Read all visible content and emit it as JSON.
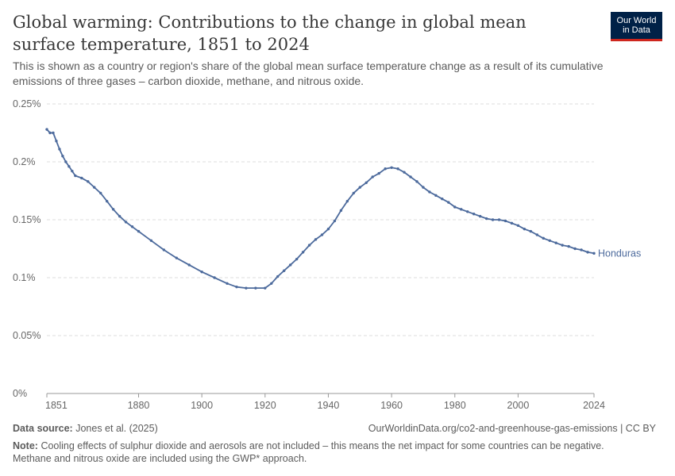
{
  "header": {
    "title": "Global warming: Contributions to the change in global mean surface temperature, 1851 to 2024",
    "subtitle": "This is shown as a country or region's share of the global mean surface temperature change as a result of its cumulative emissions of three gases – carbon dioxide, methane, and nitrous oxide.",
    "logo_line1": "Our World",
    "logo_line2": "in Data"
  },
  "colors": {
    "series": "#4c6a9c",
    "grid": "#dddddd",
    "axis_text": "#666666",
    "logo_bg": "#002147",
    "logo_accent": "#ce261e"
  },
  "chart_data": {
    "type": "line",
    "title": "Global warming: Contributions to the change in global mean surface temperature, 1851 to 2024",
    "xlim": [
      1851,
      2024
    ],
    "ylim": [
      0,
      0.25
    ],
    "y_ticks": [
      0,
      0.05,
      0.1,
      0.15,
      0.2,
      0.25
    ],
    "y_tick_labels": [
      "0%",
      "0.05%",
      "0.1%",
      "0.15%",
      "0.2%",
      "0.25%"
    ],
    "x_ticks": [
      1851,
      1880,
      1900,
      1920,
      1940,
      1960,
      1980,
      2000,
      2024
    ],
    "x_tick_labels": [
      "1851",
      "1880",
      "1900",
      "1920",
      "1940",
      "1960",
      "1980",
      "2000",
      "2024"
    ],
    "grid": "horizontal dashed",
    "series": [
      {
        "name": "Honduras",
        "points": [
          [
            1851,
            0.228
          ],
          [
            1852,
            0.225
          ],
          [
            1853,
            0.225
          ],
          [
            1854,
            0.218
          ],
          [
            1855,
            0.211
          ],
          [
            1856,
            0.205
          ],
          [
            1857,
            0.2
          ],
          [
            1858,
            0.196
          ],
          [
            1859,
            0.192
          ],
          [
            1860,
            0.188
          ],
          [
            1862,
            0.186
          ],
          [
            1864,
            0.183
          ],
          [
            1866,
            0.178
          ],
          [
            1868,
            0.173
          ],
          [
            1870,
            0.166
          ],
          [
            1872,
            0.159
          ],
          [
            1874,
            0.153
          ],
          [
            1876,
            0.148
          ],
          [
            1878,
            0.144
          ],
          [
            1880,
            0.14
          ],
          [
            1884,
            0.132
          ],
          [
            1888,
            0.124
          ],
          [
            1892,
            0.117
          ],
          [
            1896,
            0.111
          ],
          [
            1900,
            0.105
          ],
          [
            1904,
            0.1
          ],
          [
            1908,
            0.095
          ],
          [
            1911,
            0.092
          ],
          [
            1914,
            0.091
          ],
          [
            1917,
            0.091
          ],
          [
            1920,
            0.091
          ],
          [
            1922,
            0.095
          ],
          [
            1924,
            0.101
          ],
          [
            1926,
            0.106
          ],
          [
            1928,
            0.111
          ],
          [
            1930,
            0.116
          ],
          [
            1932,
            0.122
          ],
          [
            1934,
            0.128
          ],
          [
            1936,
            0.133
          ],
          [
            1938,
            0.137
          ],
          [
            1940,
            0.142
          ],
          [
            1942,
            0.149
          ],
          [
            1944,
            0.158
          ],
          [
            1946,
            0.166
          ],
          [
            1948,
            0.173
          ],
          [
            1950,
            0.178
          ],
          [
            1952,
            0.182
          ],
          [
            1954,
            0.187
          ],
          [
            1956,
            0.19
          ],
          [
            1958,
            0.194
          ],
          [
            1960,
            0.195
          ],
          [
            1962,
            0.194
          ],
          [
            1964,
            0.191
          ],
          [
            1966,
            0.187
          ],
          [
            1968,
            0.183
          ],
          [
            1970,
            0.178
          ],
          [
            1972,
            0.174
          ],
          [
            1974,
            0.171
          ],
          [
            1976,
            0.168
          ],
          [
            1978,
            0.165
          ],
          [
            1980,
            0.161
          ],
          [
            1982,
            0.159
          ],
          [
            1984,
            0.157
          ],
          [
            1986,
            0.155
          ],
          [
            1988,
            0.153
          ],
          [
            1990,
            0.151
          ],
          [
            1992,
            0.15
          ],
          [
            1994,
            0.15
          ],
          [
            1996,
            0.149
          ],
          [
            1998,
            0.147
          ],
          [
            2000,
            0.145
          ],
          [
            2002,
            0.142
          ],
          [
            2004,
            0.14
          ],
          [
            2006,
            0.137
          ],
          [
            2008,
            0.134
          ],
          [
            2010,
            0.132
          ],
          [
            2012,
            0.13
          ],
          [
            2014,
            0.128
          ],
          [
            2016,
            0.127
          ],
          [
            2018,
            0.125
          ],
          [
            2020,
            0.124
          ],
          [
            2022,
            0.122
          ],
          [
            2024,
            0.121
          ]
        ]
      }
    ]
  },
  "footer": {
    "source_label": "Data source:",
    "source_text": "Jones et al. (2025)",
    "url_text": "OurWorldinData.org/co2-and-greenhouse-gas-emissions | CC BY",
    "note_label": "Note:",
    "note_text": "Cooling effects of sulphur dioxide and aerosols are not included – this means the net impact for some countries can be negative. Methane and nitrous oxide are included using the GWP* approach."
  }
}
